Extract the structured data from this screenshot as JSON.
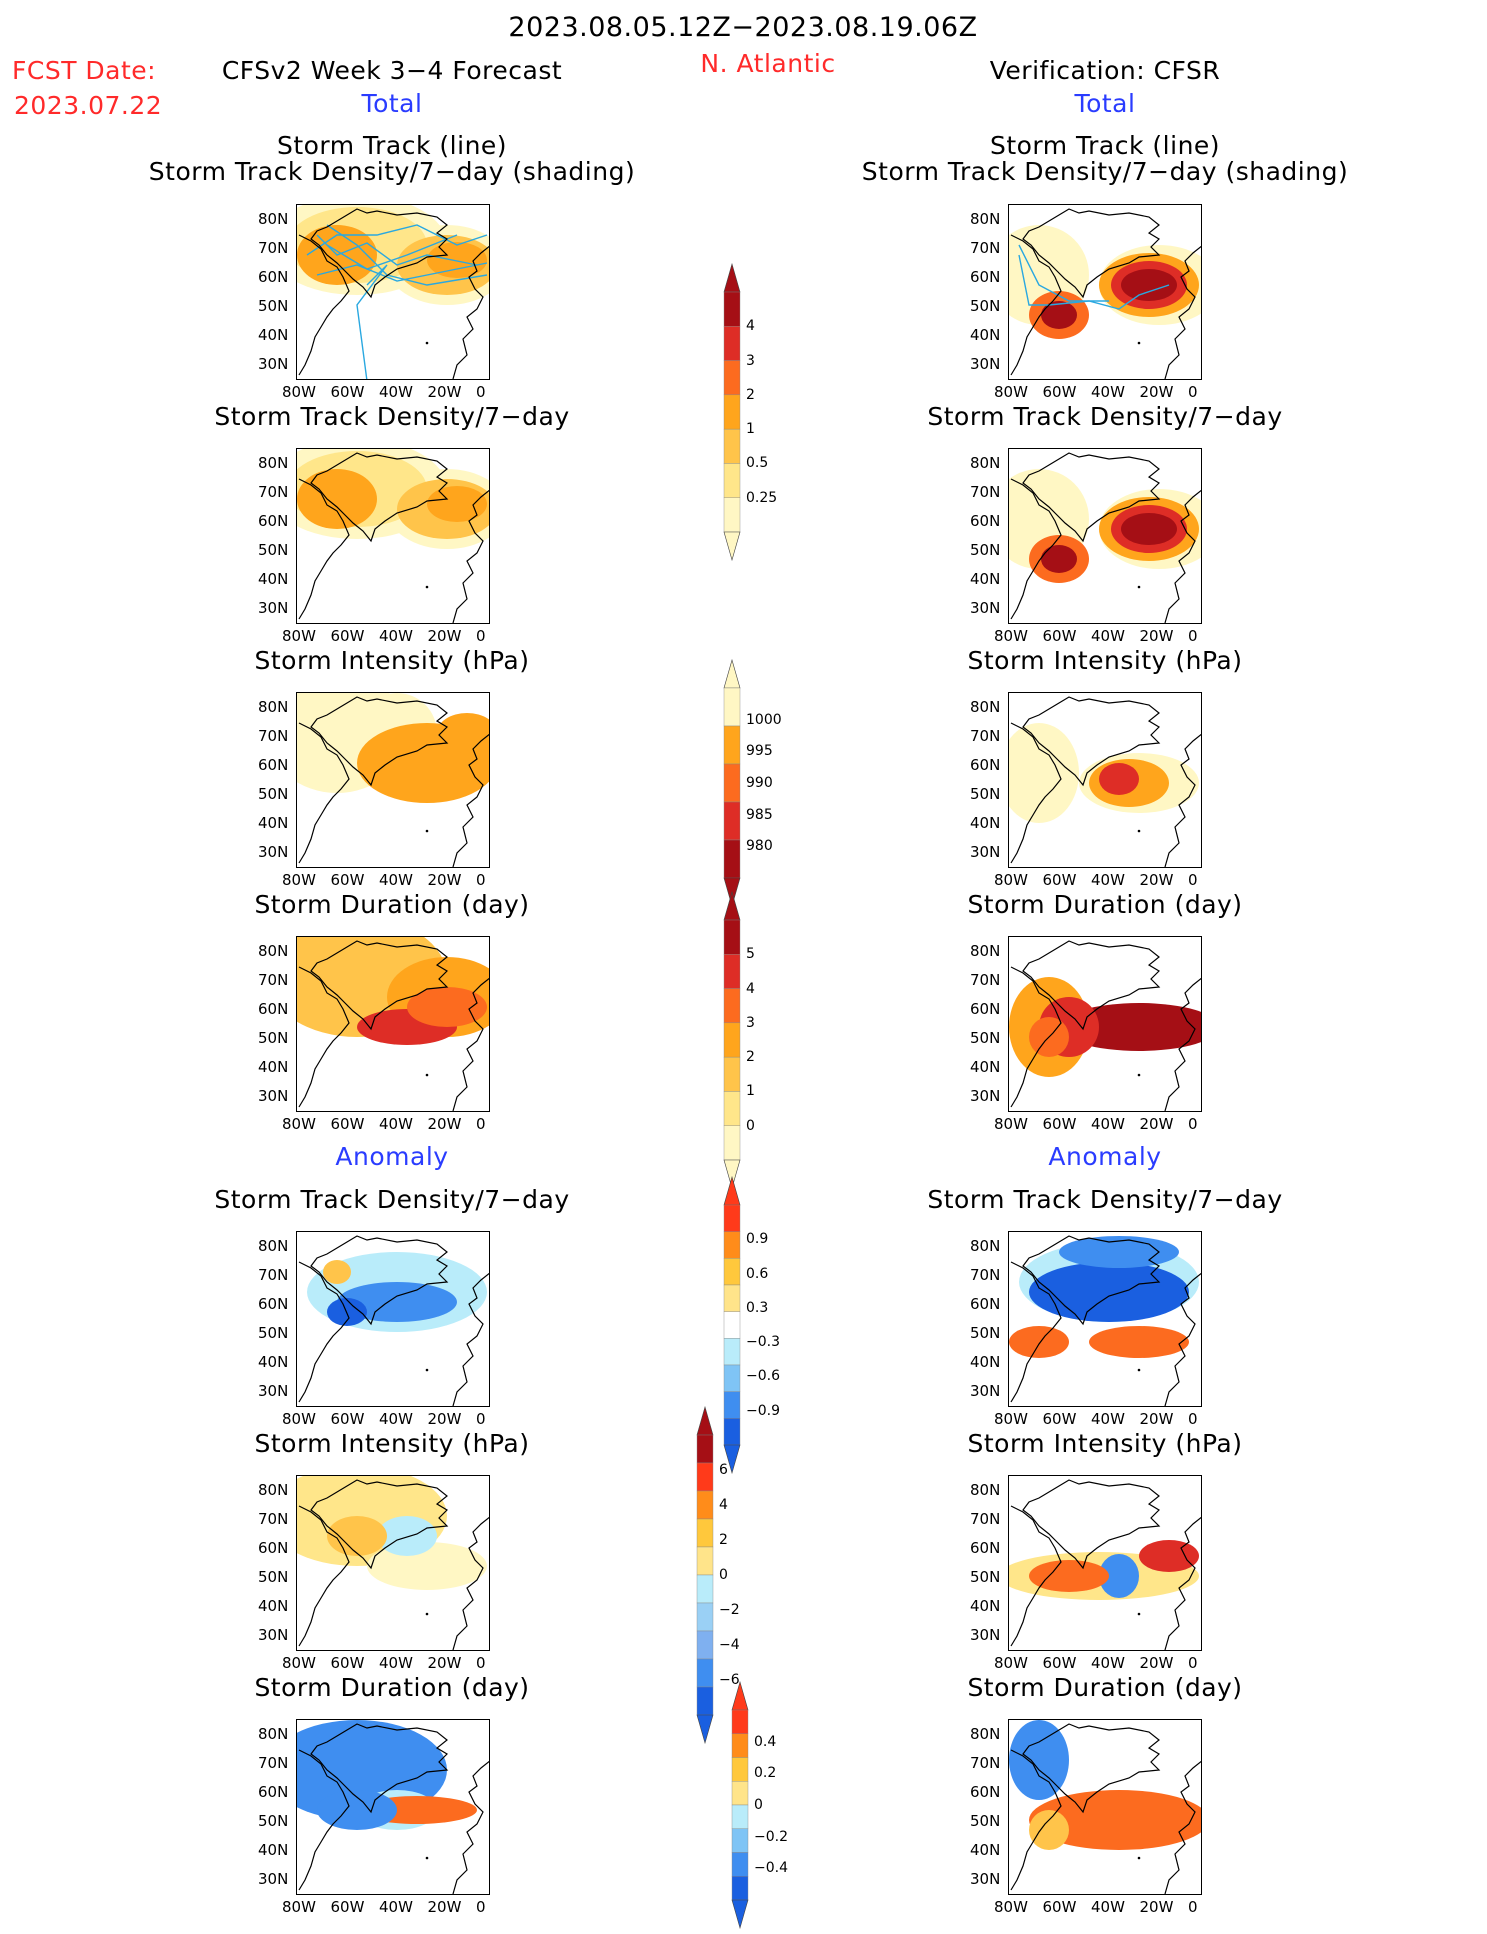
{
  "header": {
    "period": "2023.08.05.12Z−2023.08.19.06Z",
    "fcst_label": "FCST Date:",
    "fcst_date": "2023.07.22",
    "model_title": "CFSv2 Week 3−4 Forecast",
    "region": "N. Atlantic",
    "verification": "Verification: CFSR"
  },
  "sections": {
    "total_left": "Total",
    "total_right": "Total",
    "anomaly_left": "Anomaly",
    "anomaly_right": "Anomaly"
  },
  "panel_titles": {
    "track_line": "Storm Track (line)",
    "track_shading": "Storm Track Density/7−day (shading)",
    "density": "Storm Track Density/7−day",
    "intensity": "Storm Intensity (hPa)",
    "duration": "Storm Duration (day)"
  },
  "axes": {
    "lat_labels": [
      "80N",
      "70N",
      "60N",
      "50N",
      "40N",
      "30N"
    ],
    "lon_labels": [
      "80W",
      "60W",
      "40W",
      "20W",
      "0"
    ]
  },
  "colorbars": {
    "density_total": {
      "ticks": [
        "4",
        "3",
        "2",
        "1",
        "0.5",
        "0.25"
      ],
      "colors": [
        "#a50f15",
        "#de2d26",
        "#fc6b1f",
        "#ffa51c",
        "#ffc44a",
        "#ffe68a",
        "#fff7c4"
      ]
    },
    "intensity_total": {
      "ticks": [
        "1000",
        "995",
        "990",
        "985",
        "980"
      ],
      "colors": [
        "#fff7c4",
        "#ffa51c",
        "#fc6b1f",
        "#de2d26",
        "#a50f15"
      ]
    },
    "duration_total": {
      "ticks": [
        "5",
        "4",
        "3",
        "2",
        "1",
        "0"
      ],
      "colors": [
        "#a50f15",
        "#de2d26",
        "#fc6b1f",
        "#ffa51c",
        "#ffc44a",
        "#ffe68a",
        "#fff7c4"
      ]
    },
    "density_anom": {
      "ticks": [
        "0.9",
        "0.6",
        "0.3",
        "−0.3",
        "−0.6",
        "−0.9"
      ],
      "colors": [
        "#ff3a1a",
        "#ff8c1a",
        "#ffc83c",
        "#ffe48a",
        "#ffffff",
        "#b9ecfa",
        "#7fc4f5",
        "#3f8ef0",
        "#1a5fe0"
      ]
    },
    "intensity_anom": {
      "ticks": [
        "6",
        "4",
        "2",
        "0",
        "−2",
        "−4",
        "−6"
      ],
      "colors": [
        "#a50f15",
        "#ff3a1a",
        "#ff8c1a",
        "#ffc83c",
        "#ffe48a",
        "#b9ecfa",
        "#9ad0f5",
        "#7fb0f0",
        "#3f8ef0",
        "#1a5fe0"
      ]
    },
    "duration_anom": {
      "ticks": [
        "0.4",
        "0.2",
        "0",
        "−0.2",
        "−0.4"
      ],
      "colors": [
        "#ff3a1a",
        "#ff8c1a",
        "#ffc83c",
        "#ffe48a",
        "#b9ecfa",
        "#7fc4f5",
        "#3f8ef0",
        "#1a5fe0"
      ]
    }
  },
  "colors": {
    "title_red": "#ff2a2a",
    "section_blue": "#2a3cff",
    "track_line": "#2aa8e0"
  }
}
